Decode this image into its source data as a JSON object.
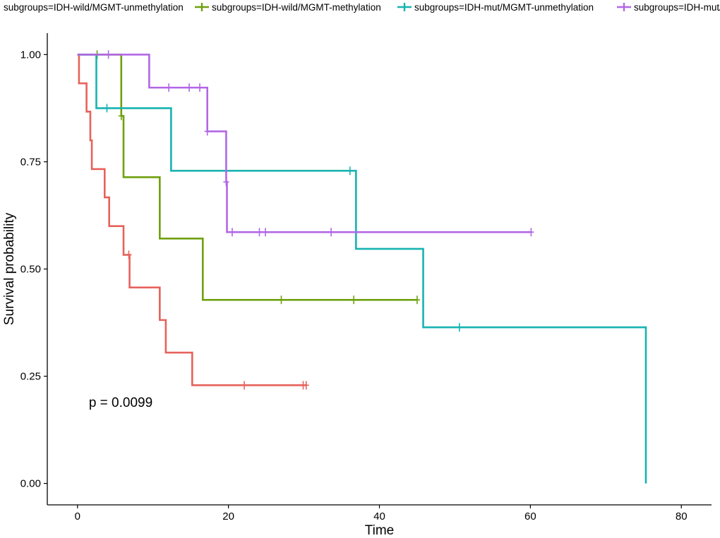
{
  "chart_data": {
    "type": "line",
    "subtype": "kaplan-meier-step",
    "xlabel": "Time",
    "ylabel": "Survival probability",
    "xlim": [
      -4,
      84
    ],
    "ylim": [
      -0.05,
      1.05
    ],
    "x_ticks": [
      0,
      20,
      40,
      60,
      80
    ],
    "x_tick_labels": [
      "0",
      "20",
      "40",
      "60",
      "80"
    ],
    "y_ticks": [
      0,
      0.25,
      0.5,
      0.75,
      1
    ],
    "y_tick_labels": [
      "0.00",
      "0.25",
      "0.50",
      "0.75",
      "1.00"
    ],
    "grid": false,
    "legend_position": "top",
    "annotation": {
      "text": "p = 0.0099",
      "x": 1.5,
      "y": 0.19
    },
    "series": [
      {
        "name": "subgroups=IDH-wild/MGMT-unmethylation",
        "color": "#E7625B",
        "steps": [
          [
            0,
            1.0
          ],
          [
            0.2,
            0.933
          ],
          [
            1.2,
            0.867
          ],
          [
            1.7,
            0.8
          ],
          [
            1.9,
            0.733
          ],
          [
            3.6,
            0.667
          ],
          [
            4.2,
            0.6
          ],
          [
            6.1,
            0.533
          ],
          [
            6.9,
            0.457
          ],
          [
            10.9,
            0.381
          ],
          [
            11.7,
            0.305
          ],
          [
            15.2,
            0.229
          ],
          [
            30.4,
            0.229
          ]
        ],
        "censored": [
          [
            6.8,
            0.533
          ],
          [
            22.1,
            0.229
          ],
          [
            29.9,
            0.229
          ],
          [
            30.3,
            0.229
          ]
        ]
      },
      {
        "name": "subgroups=IDH-wild/MGMT-methylation",
        "color": "#6FA00E",
        "steps": [
          [
            0,
            1.0
          ],
          [
            5.8,
            0.857
          ],
          [
            6.1,
            0.714
          ],
          [
            10.9,
            0.571
          ],
          [
            16.6,
            0.428
          ],
          [
            45.0,
            0.428
          ]
        ],
        "censored": [
          [
            2.6,
            1.0
          ],
          [
            5.8,
            0.857
          ],
          [
            27.0,
            0.428
          ],
          [
            36.6,
            0.428
          ],
          [
            45.0,
            0.428
          ]
        ]
      },
      {
        "name": "subgroups=IDH-mut/MGMT-unmethylation",
        "color": "#16B3B1",
        "steps": [
          [
            0,
            1.0
          ],
          [
            2.5,
            0.875
          ],
          [
            12.4,
            0.729
          ],
          [
            36.9,
            0.547
          ],
          [
            45.8,
            0.364
          ],
          [
            75.3,
            0.0
          ]
        ],
        "censored": [
          [
            3.9,
            0.875
          ],
          [
            36.1,
            0.729
          ],
          [
            50.6,
            0.364
          ]
        ]
      },
      {
        "name": "subgroups=IDH-mut/MGMT-methylation",
        "color": "#B267E6",
        "steps": [
          [
            0,
            1.0
          ],
          [
            9.5,
            0.923
          ],
          [
            17.2,
            0.821
          ],
          [
            19.7,
            0.703
          ],
          [
            19.8,
            0.586
          ],
          [
            60.2,
            0.586
          ]
        ],
        "censored": [
          [
            4.1,
            1.0
          ],
          [
            12.1,
            0.923
          ],
          [
            14.8,
            0.923
          ],
          [
            16.2,
            0.923
          ],
          [
            17.2,
            0.821
          ],
          [
            19.7,
            0.703
          ],
          [
            20.5,
            0.586
          ],
          [
            24.1,
            0.586
          ],
          [
            24.9,
            0.586
          ],
          [
            33.6,
            0.586
          ],
          [
            60.1,
            0.586
          ]
        ]
      }
    ]
  }
}
